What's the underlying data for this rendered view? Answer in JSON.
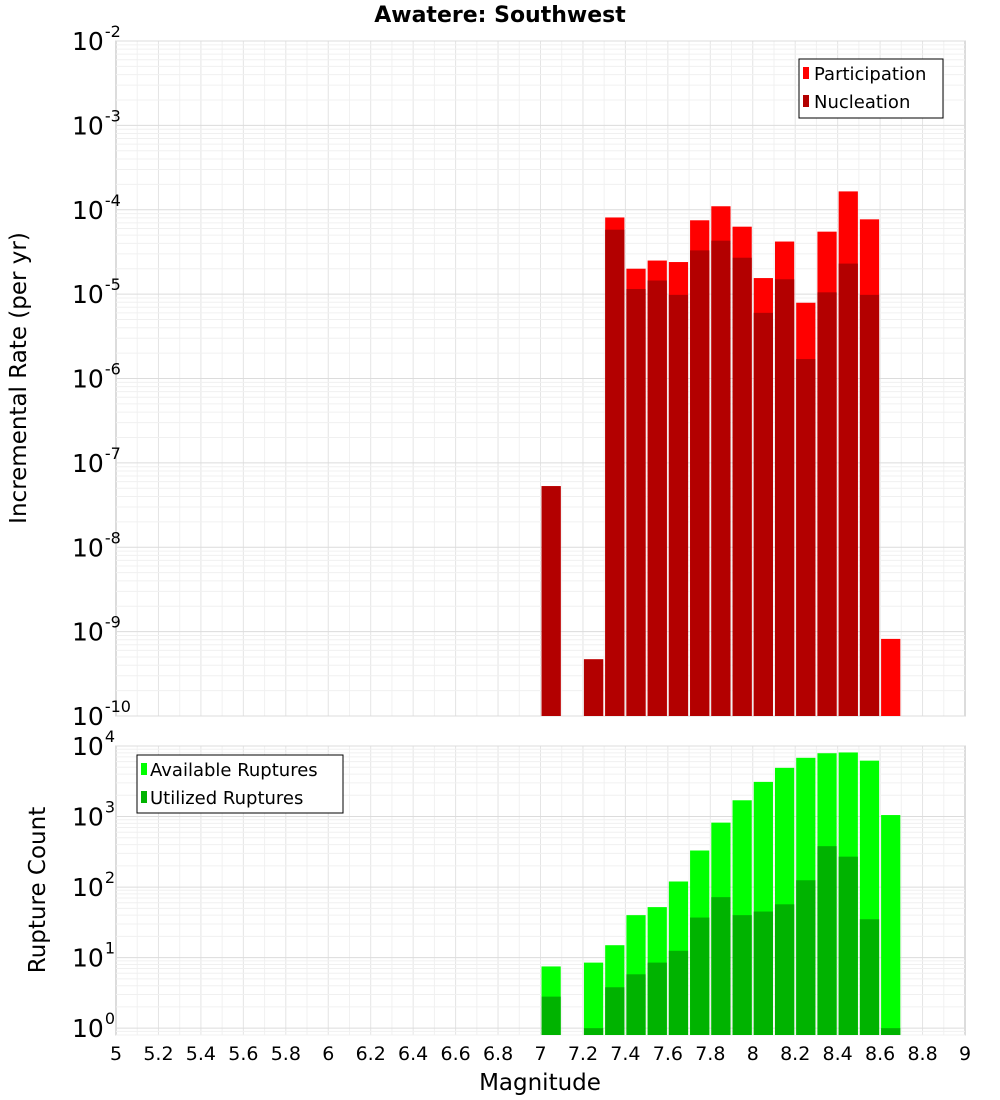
{
  "chart_data": [
    {
      "type": "bar",
      "panel": "top",
      "title": "Awatere: Southwest",
      "xlabel": "Magnitude",
      "ylabel": "Incremental Rate (per yr)",
      "yscale": "log",
      "ylim": [
        1e-10,
        0.01
      ],
      "xlim": [
        5,
        9
      ],
      "bin_width": 0.1,
      "legend": {
        "placement": "top-right"
      },
      "y_tick_exponents": [
        -10,
        -9,
        -8,
        -7,
        -6,
        -5,
        -4,
        -3,
        -2
      ],
      "x": [
        7.05,
        7.25,
        7.35,
        7.45,
        7.55,
        7.65,
        7.75,
        7.85,
        7.95,
        8.05,
        8.15,
        8.25,
        8.35,
        8.45,
        8.55,
        8.65
      ],
      "series": [
        {
          "name": "Participation",
          "color": "#ff0000",
          "values": [
            5.3e-08,
            4.7e-10,
            8.1e-05,
            2e-05,
            2.5e-05,
            2.4e-05,
            7.5e-05,
            0.00011,
            6.3e-05,
            1.55e-05,
            4.2e-05,
            7.9e-06,
            5.5e-05,
            0.000165,
            7.7e-05,
            8.2e-10
          ]
        },
        {
          "name": "Nucleation",
          "color": "#b30000",
          "values": [
            5.3e-08,
            4.7e-10,
            5.8e-05,
            1.15e-05,
            1.45e-05,
            9.8e-06,
            3.3e-05,
            4.3e-05,
            2.7e-05,
            6e-06,
            1.5e-05,
            1.7e-06,
            1.05e-05,
            2.3e-05,
            9.8e-06,
            null
          ]
        }
      ]
    },
    {
      "type": "bar",
      "panel": "bottom",
      "xlabel": "Magnitude",
      "ylabel": "Rupture Count",
      "yscale": "log",
      "ylim": [
        0.8,
        10000
      ],
      "xlim": [
        5,
        9
      ],
      "bin_width": 0.1,
      "legend": {
        "placement": "top-left"
      },
      "y_tick_exponents": [
        0,
        1,
        2,
        3,
        4
      ],
      "x_tick_labels": [
        "5",
        "5.2",
        "5.4",
        "5.6",
        "5.8",
        "6",
        "6.2",
        "6.4",
        "6.6",
        "6.8",
        "7",
        "7.2",
        "7.4",
        "7.6",
        "7.8",
        "8",
        "8.2",
        "8.4",
        "8.6",
        "8.8",
        "9"
      ],
      "x": [
        7.05,
        7.25,
        7.35,
        7.45,
        7.55,
        7.65,
        7.75,
        7.85,
        7.95,
        8.05,
        8.15,
        8.25,
        8.35,
        8.45,
        8.55,
        8.65
      ],
      "series": [
        {
          "name": "Available Ruptures",
          "color": "#00ff00",
          "values": [
            7.5,
            8.5,
            15,
            40,
            52,
            120,
            330,
            820,
            1700,
            3100,
            4900,
            6800,
            7900,
            8100,
            6200,
            1050
          ]
        },
        {
          "name": "Utilized Ruptures",
          "color": "#00b300",
          "values": [
            2.8,
            1,
            3.8,
            5.8,
            8.5,
            12.5,
            37,
            72,
            40,
            45,
            57,
            125,
            380,
            270,
            35,
            1
          ]
        }
      ]
    }
  ]
}
